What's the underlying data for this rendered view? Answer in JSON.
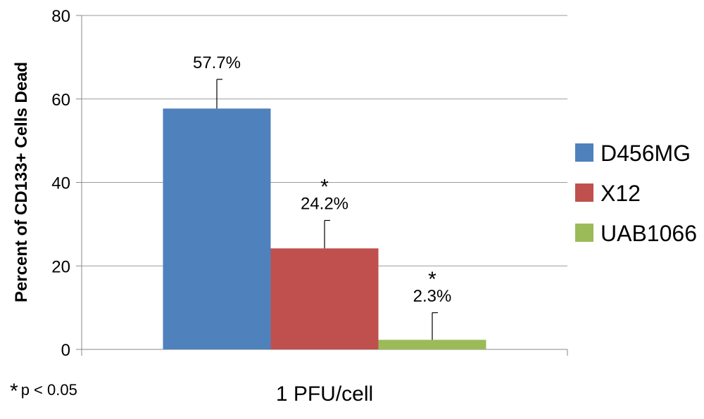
{
  "chart_data": {
    "type": "bar",
    "categories": [
      "1 PFU/cell"
    ],
    "series": [
      {
        "name": "D456MG",
        "values": [
          57.7
        ],
        "error": [
          7.0
        ],
        "label": "57.7%",
        "significance": "",
        "color": "#4F81BD"
      },
      {
        "name": "X12",
        "values": [
          24.2
        ],
        "error": [
          6.7
        ],
        "label": "24.2%",
        "significance": "*",
        "color": "#C0504D"
      },
      {
        "name": "UAB1066",
        "values": [
          2.3
        ],
        "error": [
          6.5
        ],
        "label": "2.3%",
        "significance": "*",
        "color": "#9BBB59"
      }
    ],
    "xlabel": "1 PFU/cell",
    "ylabel": "Percent of CD133+ Cells Dead",
    "ylim": [
      0,
      80
    ],
    "yticks": [
      0,
      20,
      40,
      60,
      80
    ],
    "grid": true,
    "legend_position": "right"
  },
  "footnote": {
    "symbol": "*",
    "text": "p < 0.05"
  }
}
